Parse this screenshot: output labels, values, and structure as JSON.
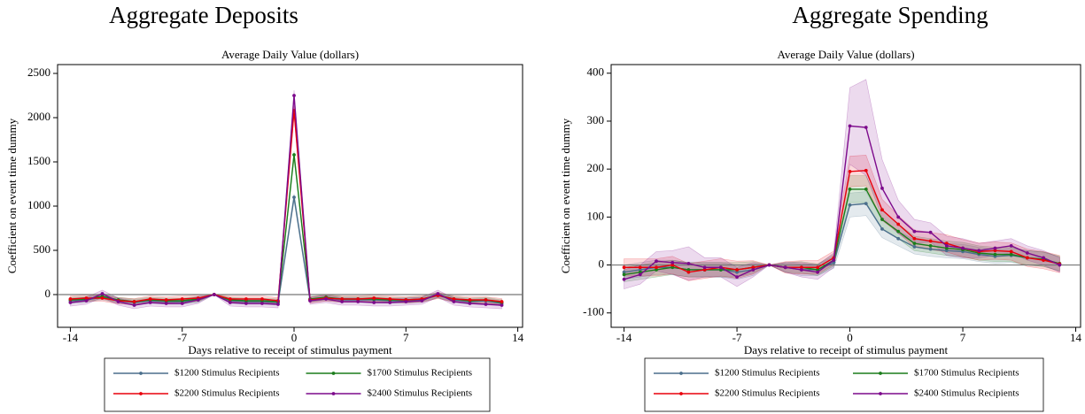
{
  "chart_data": [
    {
      "type": "line",
      "title": "Aggregate Deposits",
      "subtitle": "Average Daily Value (dollars)",
      "x_label": "Days relative to receipt of stimulus payment",
      "y_label": "Coefficient on event time dummy",
      "x": [
        -14,
        -13,
        -12,
        -11,
        -10,
        -9,
        -8,
        -7,
        -6,
        -5,
        -4,
        -3,
        -2,
        -1,
        0,
        1,
        2,
        3,
        4,
        5,
        6,
        7,
        8,
        9,
        10,
        11,
        12,
        13
      ],
      "xlim": [
        -14.8,
        14.3
      ],
      "xticks": [
        -14,
        -7,
        0,
        7,
        14
      ],
      "ylim": [
        -370,
        2600
      ],
      "yticks": [
        0,
        500,
        1000,
        1500,
        2000,
        2500
      ],
      "series": [
        {
          "name": "$1200 Stimulus Recipients",
          "color": "#4b6f8c",
          "values": [
            -70,
            -60,
            -30,
            -70,
            -90,
            -70,
            -80,
            -80,
            -60,
            0,
            -70,
            -80,
            -80,
            -90,
            1100,
            -60,
            -40,
            -60,
            -60,
            -60,
            -70,
            -70,
            -60,
            -10,
            -60,
            -80,
            -70,
            -100
          ],
          "errors": [
            30,
            30,
            30,
            30,
            30,
            30,
            30,
            30,
            30,
            0,
            30,
            30,
            30,
            30,
            40,
            30,
            30,
            30,
            30,
            30,
            30,
            30,
            30,
            30,
            30,
            30,
            30,
            30
          ]
        },
        {
          "name": "$1700 Stimulus Recipients",
          "color": "#1b7d1b",
          "values": [
            -60,
            -50,
            -20,
            -60,
            -80,
            -60,
            -70,
            -70,
            -50,
            0,
            -60,
            -70,
            -70,
            -80,
            1580,
            -50,
            -30,
            -50,
            -50,
            -50,
            -60,
            -60,
            -50,
            -5,
            -50,
            -70,
            -60,
            -90
          ],
          "errors": [
            30,
            30,
            30,
            30,
            30,
            30,
            30,
            30,
            30,
            0,
            30,
            30,
            30,
            30,
            40,
            30,
            30,
            30,
            30,
            30,
            30,
            30,
            30,
            30,
            30,
            30,
            30,
            30
          ]
        },
        {
          "name": "$2200 Stimulus Recipients",
          "color": "#e8000b",
          "values": [
            -50,
            -40,
            -40,
            -70,
            -80,
            -50,
            -60,
            -50,
            -40,
            0,
            -50,
            -50,
            -50,
            -70,
            2080,
            -60,
            -40,
            -50,
            -50,
            -40,
            -50,
            -60,
            -50,
            -10,
            -50,
            -60,
            -60,
            -80
          ],
          "errors": [
            35,
            35,
            35,
            35,
            35,
            35,
            35,
            35,
            35,
            0,
            35,
            35,
            35,
            35,
            50,
            35,
            35,
            35,
            35,
            35,
            35,
            35,
            35,
            35,
            35,
            35,
            35,
            35
          ]
        },
        {
          "name": "$2400 Stimulus Recipients",
          "color": "#7d0a8c",
          "values": [
            -90,
            -70,
            10,
            -80,
            -120,
            -90,
            -100,
            -100,
            -60,
            0,
            -90,
            -100,
            -100,
            -110,
            2250,
            -70,
            -50,
            -80,
            -80,
            -90,
            -90,
            -80,
            -70,
            10,
            -80,
            -100,
            -110,
            -120
          ],
          "errors": [
            40,
            40,
            40,
            40,
            40,
            40,
            40,
            40,
            40,
            0,
            40,
            40,
            40,
            40,
            60,
            40,
            40,
            40,
            40,
            40,
            40,
            40,
            40,
            40,
            40,
            40,
            40,
            40
          ]
        }
      ]
    },
    {
      "type": "line",
      "title": "Aggregate Spending",
      "subtitle": "Average Daily Value (dollars)",
      "x_label": "Days relative to receipt of stimulus payment",
      "y_label": "Coefficient on event time dummy",
      "x": [
        -14,
        -13,
        -12,
        -11,
        -10,
        -9,
        -8,
        -7,
        -6,
        -5,
        -4,
        -3,
        -2,
        -1,
        0,
        1,
        2,
        3,
        4,
        5,
        6,
        7,
        8,
        9,
        10,
        11,
        12,
        13
      ],
      "xlim": [
        -14.8,
        14.3
      ],
      "xticks": [
        -14,
        -7,
        0,
        7,
        14
      ],
      "ylim": [
        -130,
        418
      ],
      "yticks": [
        -100,
        0,
        100,
        200,
        300,
        400
      ],
      "series": [
        {
          "name": "$1200 Stimulus Recipients",
          "color": "#4b6f8c",
          "values": [
            -15,
            -10,
            -5,
            -5,
            -10,
            -10,
            -10,
            -15,
            -10,
            0,
            -5,
            -10,
            -10,
            5,
            125,
            128,
            75,
            55,
            38,
            33,
            30,
            28,
            22,
            18,
            20,
            15,
            12,
            2
          ],
          "errors": [
            15,
            15,
            15,
            15,
            15,
            15,
            15,
            15,
            12,
            0,
            10,
            12,
            12,
            12,
            25,
            25,
            18,
            15,
            15,
            15,
            15,
            15,
            15,
            15,
            15,
            15,
            15,
            15
          ]
        },
        {
          "name": "$1700 Stimulus Recipients",
          "color": "#1b7d1b",
          "values": [
            -20,
            -15,
            -10,
            -5,
            -10,
            -10,
            -10,
            -10,
            -5,
            0,
            -5,
            -5,
            -10,
            10,
            158,
            158,
            95,
            70,
            45,
            40,
            35,
            32,
            25,
            22,
            22,
            15,
            12,
            3
          ],
          "errors": [
            15,
            15,
            15,
            15,
            15,
            15,
            15,
            15,
            12,
            0,
            10,
            12,
            12,
            12,
            28,
            28,
            20,
            15,
            15,
            15,
            15,
            15,
            15,
            15,
            15,
            15,
            15,
            15
          ]
        },
        {
          "name": "$2200 Stimulus Recipients",
          "color": "#e8000b",
          "values": [
            -5,
            -5,
            -5,
            0,
            -15,
            -10,
            -5,
            -10,
            -5,
            0,
            -5,
            -5,
            -5,
            15,
            195,
            197,
            115,
            85,
            55,
            50,
            45,
            35,
            28,
            30,
            28,
            15,
            10,
            2
          ],
          "errors": [
            18,
            18,
            18,
            18,
            18,
            18,
            18,
            18,
            14,
            0,
            12,
            14,
            14,
            14,
            32,
            32,
            22,
            18,
            18,
            18,
            18,
            18,
            18,
            18,
            18,
            18,
            18,
            18
          ]
        },
        {
          "name": "$2400 Stimulus Recipients",
          "color": "#7d0a8c",
          "values": [
            -30,
            -20,
            8,
            5,
            3,
            -5,
            -5,
            -25,
            -10,
            0,
            -5,
            -10,
            -15,
            10,
            290,
            287,
            160,
            100,
            70,
            68,
            40,
            35,
            30,
            35,
            40,
            25,
            15,
            0
          ],
          "errors": [
            20,
            20,
            20,
            25,
            35,
            20,
            20,
            20,
            15,
            0,
            10,
            15,
            15,
            15,
            80,
            100,
            60,
            35,
            25,
            20,
            20,
            20,
            15,
            15,
            15,
            15,
            15,
            15
          ]
        }
      ]
    }
  ]
}
